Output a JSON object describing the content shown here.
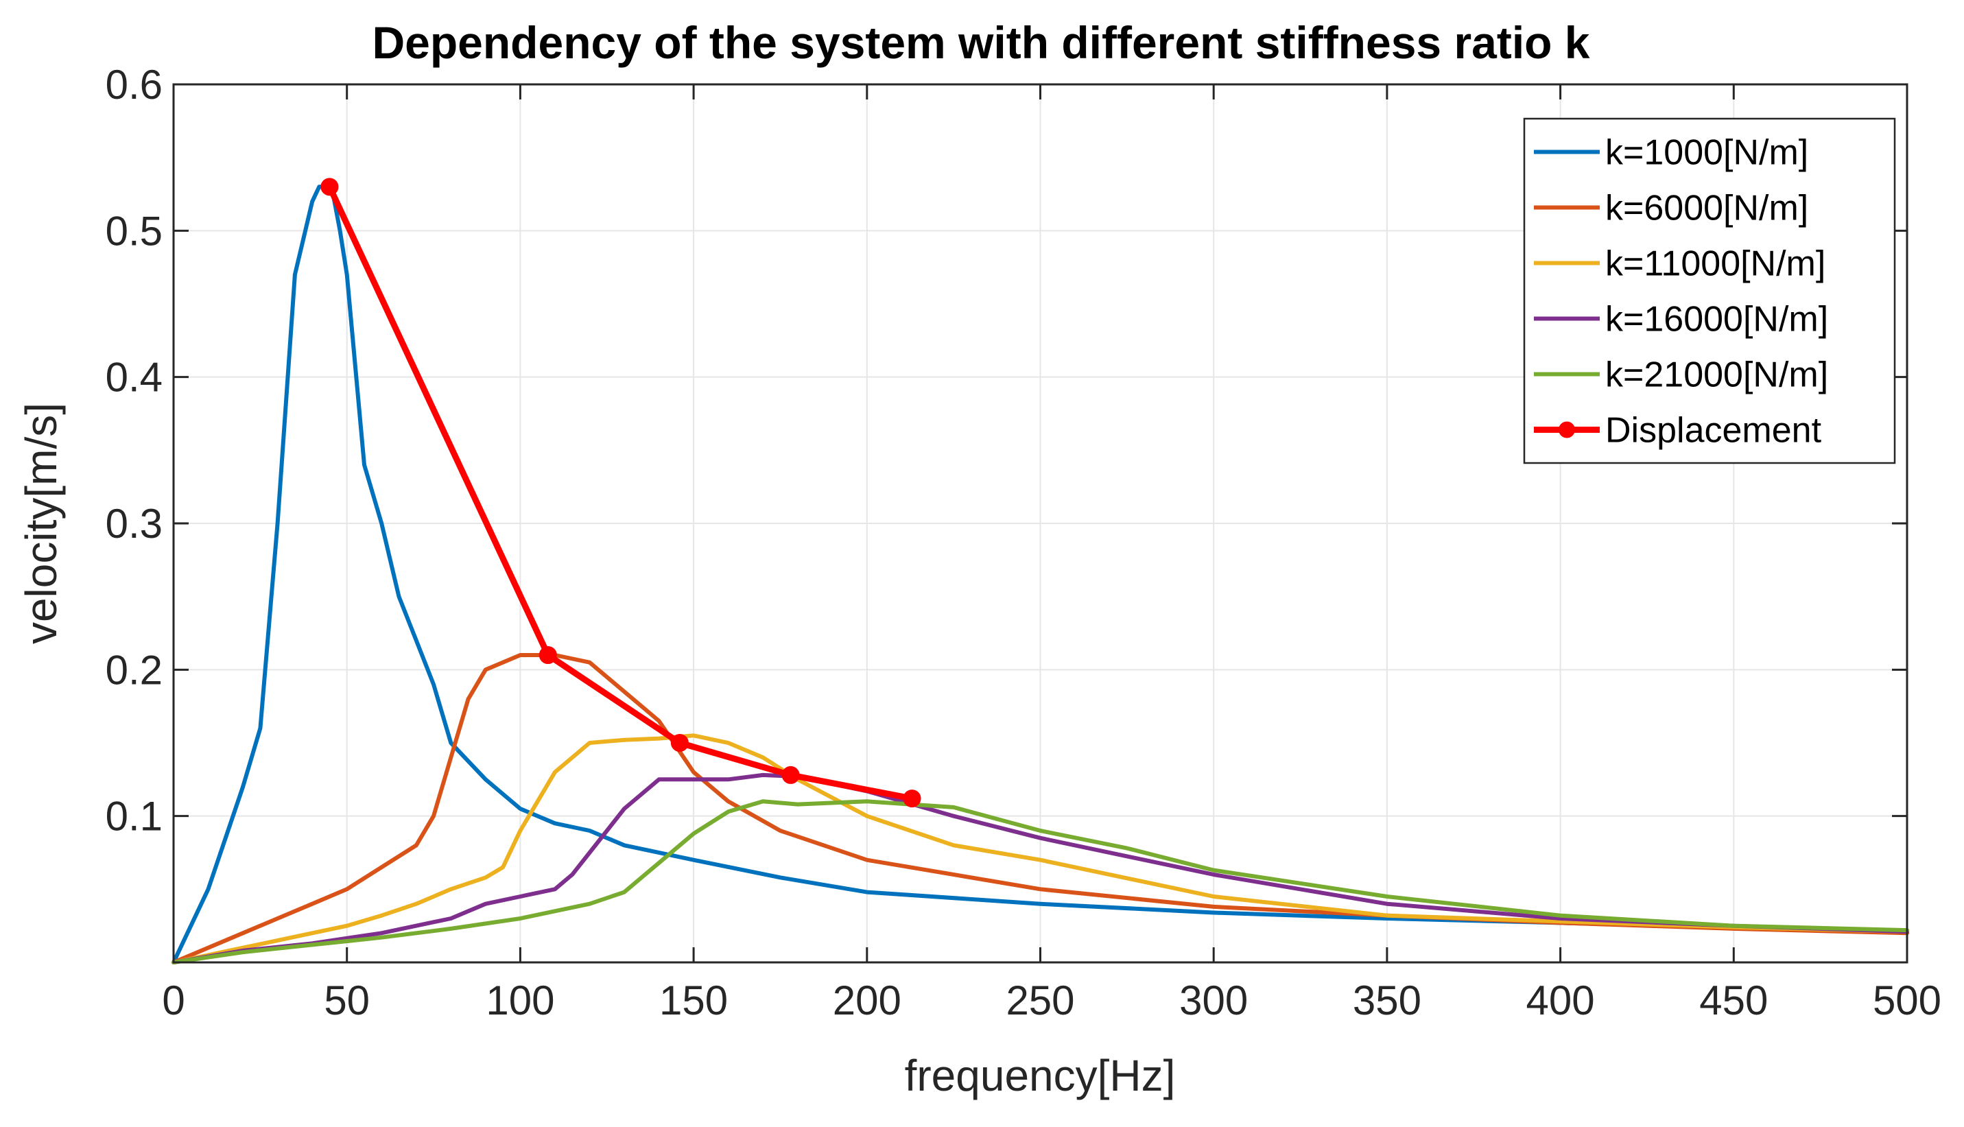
{
  "chart_data": {
    "type": "line",
    "title": "Dependency of the system with different stiffness ratio k",
    "xlabel": "frequency[Hz]",
    "ylabel": "velocity[m/s]",
    "xlim": [
      0,
      500
    ],
    "ylim": [
      0,
      0.6
    ],
    "xticks": [
      0,
      50,
      100,
      150,
      200,
      250,
      300,
      350,
      400,
      450,
      500
    ],
    "yticks": [
      0.1,
      0.2,
      0.3,
      0.4,
      0.5,
      0.6
    ],
    "xtick_labels": [
      "0",
      "50",
      "100",
      "150",
      "200",
      "250",
      "300",
      "350",
      "400",
      "450",
      "500"
    ],
    "ytick_labels": [
      "0.1",
      "0.2",
      "0.3",
      "0.4",
      "0.5",
      "0.6"
    ],
    "grid": true,
    "legend_position": "top-right",
    "series": [
      {
        "name": "k=1000[N/m]",
        "color": "#0072BD",
        "marker": "none",
        "x": [
          0,
          10,
          20,
          25,
          30,
          35,
          38,
          40,
          42,
          44,
          46,
          48,
          50,
          55,
          60,
          65,
          70,
          75,
          80,
          90,
          100,
          110,
          120,
          130,
          150,
          175,
          200,
          250,
          300,
          350,
          400,
          450,
          500
        ],
        "y": [
          0,
          0.05,
          0.12,
          0.16,
          0.3,
          0.47,
          0.5,
          0.52,
          0.53,
          0.53,
          0.525,
          0.5,
          0.47,
          0.34,
          0.3,
          0.25,
          0.22,
          0.19,
          0.15,
          0.125,
          0.105,
          0.095,
          0.09,
          0.08,
          0.07,
          0.058,
          0.048,
          0.04,
          0.034,
          0.03,
          0.027,
          0.024,
          0.021
        ]
      },
      {
        "name": "k=6000[N/m]",
        "color": "#D95319",
        "marker": "none",
        "x": [
          0,
          10,
          20,
          30,
          40,
          50,
          60,
          70,
          75,
          80,
          85,
          90,
          100,
          110,
          120,
          130,
          140,
          150,
          160,
          175,
          200,
          250,
          300,
          350,
          400,
          450,
          500
        ],
        "y": [
          0,
          0.01,
          0.02,
          0.03,
          0.04,
          0.05,
          0.065,
          0.08,
          0.1,
          0.14,
          0.18,
          0.2,
          0.21,
          0.21,
          0.205,
          0.185,
          0.165,
          0.13,
          0.11,
          0.09,
          0.07,
          0.05,
          0.038,
          0.032,
          0.027,
          0.023,
          0.02
        ]
      },
      {
        "name": "k=11000[N/m]",
        "color": "#EDB120",
        "marker": "none",
        "x": [
          0,
          20,
          40,
          50,
          60,
          70,
          80,
          90,
          95,
          100,
          105,
          110,
          120,
          130,
          140,
          150,
          160,
          170,
          180,
          200,
          225,
          250,
          300,
          350,
          400,
          450,
          500
        ],
        "y": [
          0,
          0.01,
          0.02,
          0.025,
          0.032,
          0.04,
          0.05,
          0.058,
          0.065,
          0.09,
          0.11,
          0.13,
          0.15,
          0.152,
          0.153,
          0.155,
          0.15,
          0.14,
          0.125,
          0.1,
          0.08,
          0.07,
          0.045,
          0.032,
          0.028,
          0.024,
          0.021
        ]
      },
      {
        "name": "k=16000[N/m]",
        "color": "#7E2F8E",
        "marker": "none",
        "x": [
          0,
          20,
          40,
          60,
          80,
          90,
          100,
          110,
          115,
          120,
          130,
          140,
          150,
          160,
          170,
          180,
          200,
          225,
          250,
          300,
          350,
          400,
          450,
          500
        ],
        "y": [
          0,
          0.008,
          0.013,
          0.02,
          0.03,
          0.04,
          0.045,
          0.05,
          0.06,
          0.075,
          0.105,
          0.125,
          0.125,
          0.125,
          0.128,
          0.127,
          0.117,
          0.1,
          0.085,
          0.06,
          0.04,
          0.03,
          0.025,
          0.021
        ]
      },
      {
        "name": "k=21000[N/m]",
        "color": "#77AC30",
        "marker": "none",
        "x": [
          0,
          20,
          40,
          60,
          80,
          100,
          110,
          120,
          130,
          140,
          150,
          160,
          170,
          180,
          200,
          225,
          250,
          275,
          300,
          350,
          400,
          450,
          500
        ],
        "y": [
          0,
          0.007,
          0.012,
          0.017,
          0.023,
          0.03,
          0.035,
          0.04,
          0.048,
          0.068,
          0.088,
          0.103,
          0.11,
          0.108,
          0.11,
          0.106,
          0.09,
          0.078,
          0.063,
          0.045,
          0.032,
          0.025,
          0.022
        ]
      },
      {
        "name": "Displacement",
        "color": "#FF0000",
        "marker": "circle",
        "x": [
          45,
          108,
          146,
          178,
          213
        ],
        "y": [
          0.53,
          0.21,
          0.15,
          0.128,
          0.112
        ]
      }
    ]
  }
}
